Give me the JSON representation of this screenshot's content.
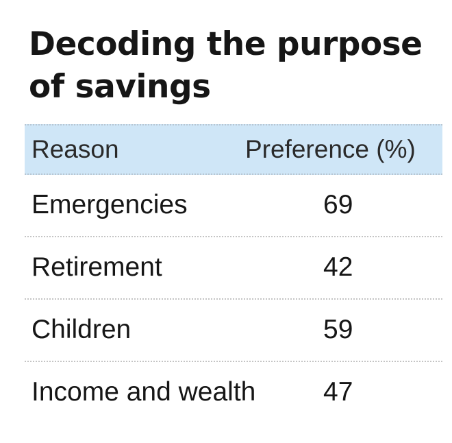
{
  "chart_data": {
    "type": "table",
    "title": "Decoding the purpose of savings",
    "columns": [
      "Reason",
      "Preference (%)"
    ],
    "categories": [
      "Emergencies",
      "Retirement",
      "Children",
      "Income and wealth"
    ],
    "values": [
      69,
      42,
      59,
      47
    ],
    "rows": [
      {
        "reason": "Emergencies",
        "preference": "69"
      },
      {
        "reason": "Retirement",
        "preference": "42"
      },
      {
        "reason": "Children",
        "preference": "59"
      },
      {
        "reason": "Income and wealth",
        "preference": "47"
      }
    ]
  },
  "colors": {
    "header_background": "#cfe6f7",
    "text": "#161616",
    "divider": "#c4c4c4"
  }
}
